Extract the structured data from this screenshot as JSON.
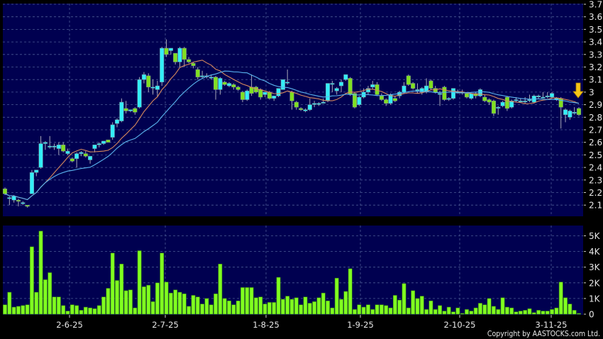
{
  "chart_data": [
    {
      "type": "candlestick",
      "panel": "price",
      "ylim": [
        2.05,
        3.7
      ],
      "yticks": [
        "3.7",
        "3.6",
        "3.5",
        "3.4",
        "3.3",
        "3.2",
        "3.1",
        "3",
        "2.9",
        "2.8",
        "2.7",
        "2.6",
        "2.5",
        "2.4",
        "2.3",
        "2.2",
        "2.1"
      ],
      "grid": true,
      "up_color": "#33eef8",
      "down_color": "#80e020",
      "ma_colors": {
        "ma10": "#d98a5c",
        "ma20": "#5ab4ee"
      },
      "marker": {
        "icon": "down-arrow-icon",
        "color": "#f5c518"
      },
      "ohlc": [
        [
          2.23,
          2.24,
          2.18,
          2.19
        ],
        [
          2.16,
          2.17,
          2.1,
          2.16
        ],
        [
          2.14,
          2.18,
          2.12,
          2.17
        ],
        [
          2.14,
          2.15,
          2.09,
          2.13
        ],
        [
          2.12,
          2.13,
          2.1,
          2.12
        ],
        [
          2.1,
          2.1,
          2.08,
          2.09
        ],
        [
          2.19,
          2.38,
          2.19,
          2.36
        ],
        [
          2.36,
          2.38,
          2.33,
          2.38
        ],
        [
          2.4,
          2.65,
          2.39,
          2.59
        ],
        [
          2.59,
          2.61,
          2.54,
          2.6
        ],
        [
          2.57,
          2.65,
          2.55,
          2.57
        ],
        [
          2.57,
          2.59,
          2.54,
          2.57
        ],
        [
          2.55,
          2.6,
          2.5,
          2.58
        ],
        [
          2.58,
          2.6,
          2.52,
          2.53
        ],
        [
          2.51,
          2.55,
          2.5,
          2.53
        ],
        [
          2.47,
          2.48,
          2.44,
          2.45
        ],
        [
          2.47,
          2.52,
          2.4,
          2.51
        ],
        [
          2.51,
          2.53,
          2.49,
          2.52
        ],
        [
          2.51,
          2.53,
          2.48,
          2.49
        ],
        [
          2.46,
          2.49,
          2.43,
          2.49
        ],
        [
          2.55,
          2.58,
          2.52,
          2.58
        ],
        [
          2.58,
          2.6,
          2.56,
          2.59
        ],
        [
          2.59,
          2.61,
          2.58,
          2.61
        ],
        [
          2.62,
          2.62,
          2.6,
          2.6
        ],
        [
          2.64,
          2.76,
          2.62,
          2.74
        ],
        [
          2.75,
          2.79,
          2.72,
          2.78
        ],
        [
          2.77,
          2.95,
          2.76,
          2.92
        ],
        [
          2.87,
          2.93,
          2.83,
          2.85
        ],
        [
          2.85,
          2.86,
          2.84,
          2.86
        ],
        [
          2.87,
          2.88,
          2.82,
          2.84
        ],
        [
          2.88,
          3.12,
          2.87,
          3.1
        ],
        [
          3.1,
          3.16,
          3.07,
          3.14
        ],
        [
          3.13,
          3.15,
          3.0,
          3.04
        ],
        [
          3.04,
          3.1,
          2.98,
          3.04
        ],
        [
          3.02,
          3.09,
          2.96,
          3.05
        ],
        [
          3.08,
          3.36,
          3.05,
          3.35
        ],
        [
          3.35,
          3.42,
          3.28,
          3.3
        ],
        [
          3.33,
          3.35,
          3.3,
          3.35
        ],
        [
          3.31,
          3.31,
          3.22,
          3.24
        ],
        [
          3.24,
          3.36,
          3.2,
          3.35
        ],
        [
          3.35,
          3.36,
          3.2,
          3.26
        ],
        [
          3.26,
          3.28,
          3.23,
          3.24
        ],
        [
          3.23,
          3.24,
          3.19,
          3.21
        ],
        [
          3.18,
          3.2,
          3.1,
          3.12
        ],
        [
          3.13,
          3.17,
          3.11,
          3.13
        ],
        [
          3.13,
          3.15,
          3.11,
          3.13
        ],
        [
          3.12,
          3.14,
          3.1,
          3.12
        ],
        [
          3.12,
          3.13,
          2.94,
          3.02
        ],
        [
          3.02,
          3.12,
          2.98,
          3.11
        ],
        [
          3.08,
          3.09,
          3.05,
          3.06
        ],
        [
          3.05,
          3.08,
          3.04,
          3.07
        ],
        [
          3.06,
          3.07,
          3.02,
          3.04
        ],
        [
          3.04,
          3.05,
          3.01,
          3.02
        ],
        [
          3.0,
          3.01,
          2.92,
          2.94
        ],
        [
          2.94,
          3.02,
          2.93,
          3.01
        ],
        [
          3.04,
          3.14,
          2.97,
          2.99
        ],
        [
          3.04,
          3.05,
          2.99,
          3.0
        ],
        [
          3.02,
          3.03,
          2.94,
          2.96
        ],
        [
          2.98,
          3.0,
          2.96,
          3.0
        ],
        [
          3.0,
          3.01,
          2.94,
          2.95
        ],
        [
          2.95,
          2.97,
          2.93,
          2.97
        ],
        [
          2.97,
          3.03,
          2.96,
          3.03
        ],
        [
          3.02,
          3.1,
          3.02,
          3.1
        ],
        [
          3.08,
          3.18,
          3.06,
          3.08
        ],
        [
          3.0,
          3.01,
          2.86,
          2.93
        ],
        [
          2.92,
          2.93,
          2.86,
          2.88
        ],
        [
          2.87,
          2.88,
          2.85,
          2.86
        ],
        [
          2.85,
          2.87,
          2.84,
          2.86
        ],
        [
          2.86,
          2.95,
          2.85,
          2.9
        ],
        [
          2.91,
          2.93,
          2.88,
          2.91
        ],
        [
          2.91,
          2.92,
          2.89,
          2.91
        ],
        [
          2.92,
          2.95,
          2.91,
          2.92
        ],
        [
          2.93,
          3.07,
          2.92,
          3.07
        ],
        [
          3.07,
          3.09,
          3.0,
          3.07
        ],
        [
          3.01,
          3.04,
          2.98,
          3.03
        ],
        [
          3.05,
          3.1,
          3.0,
          3.08
        ],
        [
          3.1,
          3.14,
          3.09,
          3.14
        ],
        [
          3.11,
          3.12,
          2.97,
          2.98
        ],
        [
          2.99,
          3.0,
          2.87,
          2.88
        ],
        [
          2.9,
          2.97,
          2.89,
          2.96
        ],
        [
          2.96,
          3.03,
          2.95,
          3.0
        ],
        [
          3.0,
          3.05,
          2.98,
          3.03
        ],
        [
          3.04,
          3.09,
          3.02,
          3.06
        ],
        [
          3.06,
          3.08,
          2.97,
          2.98
        ],
        [
          2.97,
          2.99,
          2.93,
          2.94
        ],
        [
          2.94,
          2.95,
          2.89,
          2.91
        ],
        [
          2.91,
          2.99,
          2.9,
          2.98
        ],
        [
          2.95,
          2.97,
          2.92,
          2.93
        ],
        [
          2.97,
          3.01,
          2.95,
          3.0
        ],
        [
          3.0,
          3.08,
          2.99,
          3.05
        ],
        [
          3.13,
          3.14,
          3.05,
          3.06
        ],
        [
          3.07,
          3.08,
          3.02,
          3.03
        ],
        [
          3.02,
          3.07,
          2.99,
          3.02
        ],
        [
          3.0,
          3.04,
          2.98,
          3.03
        ],
        [
          3.0,
          3.11,
          2.99,
          3.05
        ],
        [
          3.09,
          3.1,
          3.02,
          3.03
        ],
        [
          3.03,
          3.05,
          2.99,
          3.0
        ],
        [
          2.99,
          3.01,
          2.89,
          2.99
        ],
        [
          3.04,
          3.05,
          2.93,
          2.94
        ],
        [
          2.95,
          2.96,
          2.93,
          2.95
        ],
        [
          2.95,
          3.03,
          2.94,
          3.03
        ],
        [
          3.0,
          3.02,
          2.99,
          3.0
        ],
        [
          3.0,
          3.02,
          2.98,
          3.0
        ],
        [
          2.99,
          3.0,
          2.95,
          2.96
        ],
        [
          2.95,
          2.99,
          2.94,
          2.99
        ],
        [
          2.99,
          3.0,
          2.95,
          2.97
        ],
        [
          2.97,
          3.03,
          2.96,
          3.02
        ],
        [
          2.96,
          2.98,
          2.92,
          2.93
        ],
        [
          2.94,
          2.95,
          2.9,
          2.92
        ],
        [
          2.93,
          2.94,
          2.81,
          2.83
        ],
        [
          2.88,
          2.89,
          2.82,
          2.88
        ],
        [
          2.89,
          2.93,
          2.88,
          2.92
        ],
        [
          2.96,
          2.97,
          2.85,
          2.87
        ],
        [
          2.88,
          2.94,
          2.87,
          2.93
        ],
        [
          2.94,
          2.96,
          2.92,
          2.94
        ],
        [
          2.93,
          2.95,
          2.92,
          2.93
        ],
        [
          2.93,
          2.96,
          2.91,
          2.93
        ],
        [
          2.94,
          2.98,
          2.92,
          2.94
        ],
        [
          2.92,
          2.98,
          2.91,
          2.97
        ],
        [
          2.97,
          2.98,
          2.95,
          2.97
        ],
        [
          2.96,
          3.0,
          2.95,
          2.96
        ],
        [
          2.97,
          3.0,
          2.95,
          2.97
        ],
        [
          2.96,
          3.0,
          2.95,
          2.99
        ],
        [
          2.95,
          2.96,
          2.93,
          2.95
        ],
        [
          2.95,
          2.96,
          2.71,
          2.88
        ],
        [
          2.82,
          2.87,
          2.76,
          2.86
        ],
        [
          2.8,
          2.86,
          2.78,
          2.85
        ],
        [
          2.84,
          2.88,
          2.82,
          2.84
        ],
        [
          2.87,
          2.88,
          2.81,
          2.82
        ]
      ]
    },
    {
      "type": "bar",
      "panel": "volume",
      "ylim": [
        0,
        5.5
      ],
      "unit": "K",
      "yticks": [
        "5K",
        "4K",
        "3K",
        "2K",
        "1K",
        "0"
      ],
      "grid": true,
      "bar_color": "#80ff20",
      "values": [
        0.6,
        1.4,
        0.45,
        0.5,
        0.55,
        0.6,
        4.3,
        1.4,
        5.3,
        2.2,
        2.65,
        1.1,
        1.1,
        0.55,
        0.2,
        0.6,
        0.55,
        0.25,
        0.45,
        0.4,
        0.35,
        0.55,
        1.1,
        1.65,
        3.9,
        2.15,
        3.2,
        1.5,
        1.55,
        0.4,
        4.05,
        1.75,
        1.85,
        0.8,
        2.0,
        3.9,
        2.05,
        1.35,
        1.55,
        1.4,
        1.3,
        0.5,
        1.2,
        1.1,
        0.65,
        1.0,
        0.6,
        1.3,
        3.2,
        1.0,
        0.85,
        0.6,
        0.85,
        1.7,
        1.7,
        1.7,
        1.05,
        1.1,
        0.65,
        0.75,
        0.75,
        2.35,
        0.95,
        1.15,
        0.95,
        1.05,
        0.6,
        1.1,
        0.7,
        0.8,
        1.05,
        1.35,
        0.85,
        0.4,
        2.3,
        0.95,
        1.45,
        2.9,
        0.3,
        0.6,
        0.45,
        0.6,
        0.3,
        0.6,
        0.6,
        0.55,
        0.4,
        1.2,
        0.9,
        1.95,
        0.4,
        1.5,
        1.0,
        1.15,
        0.3,
        0.85,
        0.3,
        0.55,
        0.2,
        0.45,
        0.15,
        0.4,
        0.05,
        0.3,
        0.2,
        0.4,
        0.7,
        0.6,
        1.0,
        0.5,
        0.3,
        1.05,
        0.45,
        0.4,
        0.15,
        0.2,
        0.25,
        0.35,
        0.1,
        0.25,
        0.2,
        0.2,
        0.3,
        0.4,
        2.05,
        1.05,
        0.65,
        0.25,
        0.05
      ]
    }
  ],
  "x_axis": {
    "tick_labels": [
      "2-6-25",
      "2-7-25",
      "1-8-25",
      "1-9-25",
      "2-10-25",
      "3-11-25"
    ]
  },
  "footer": {
    "copyright": "Copyright by AASTOCKS.com Ltd."
  },
  "colors": {
    "plot_bg": "#000050",
    "grid": "#4b5a94",
    "page_bg": "#000000"
  }
}
